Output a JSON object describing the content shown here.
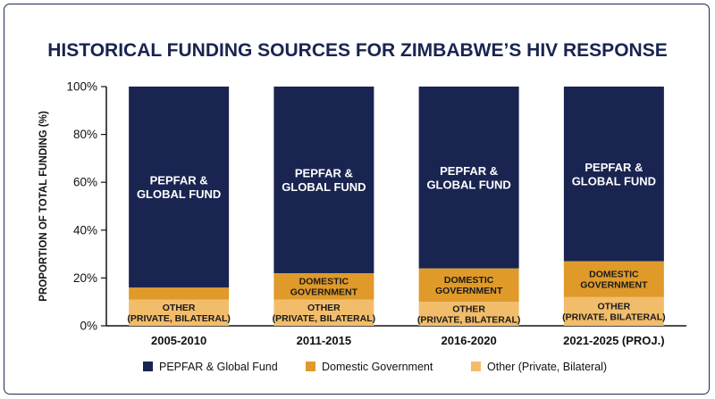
{
  "chart_data": {
    "type": "bar",
    "stacked": true,
    "title": "HISTORICAL FUNDING SOURCES FOR ZIMBABWE’S HIV RESPONSE",
    "xlabel": "",
    "ylabel": "PROPORTION OF TOTAL FUNDING (%)",
    "ylim": [
      0,
      100
    ],
    "yticks": [
      "0%",
      "20%",
      "40%",
      "60%",
      "80%",
      "100%"
    ],
    "yticks_values": [
      0,
      20,
      40,
      60,
      80,
      100
    ],
    "grid": false,
    "legend_position": "bottom",
    "categories": [
      "2005-2010",
      "2011-2015",
      "2016-2020",
      "2021-2025 (PROJ.)"
    ],
    "series": [
      {
        "name": "Other (Private, Bilateral)",
        "color": "#f2bd6b",
        "values": [
          11,
          11,
          10,
          12
        ],
        "labels": [
          [
            "OTHER",
            "(PRIVATE, BILATERAL)"
          ],
          [
            "OTHER",
            "(PRIVATE, BILATERAL)"
          ],
          [
            "OTHER",
            "(PRIVATE, BILATERAL)"
          ],
          [
            "OTHER",
            "(PRIVATE, BILATERAL)"
          ]
        ]
      },
      {
        "name": "Domestic Government",
        "color": "#e09a2a",
        "values": [
          5,
          11,
          14,
          15
        ],
        "labels": [
          null,
          [
            "DOMESTIC",
            "GOVERNMENT"
          ],
          [
            "DOMESTIC",
            "GOVERNMENT"
          ],
          [
            "DOMESTIC",
            "GOVERNMENT"
          ]
        ]
      },
      {
        "name": "PEPFAR & Global Fund",
        "color": "#192451",
        "values": [
          84,
          78,
          76,
          73
        ],
        "labels": [
          [
            "PEPFAR &",
            "GLOBAL FUND"
          ],
          [
            "PEPFAR &",
            "GLOBAL FUND"
          ],
          [
            "PEPFAR &",
            "GLOBAL FUND"
          ],
          [
            "PEPFAR &",
            "GLOBAL FUND"
          ]
        ]
      }
    ],
    "legend_order": [
      "PEPFAR & Global Fund",
      "Domestic Government",
      "Other (Private, Bilateral)"
    ]
  }
}
